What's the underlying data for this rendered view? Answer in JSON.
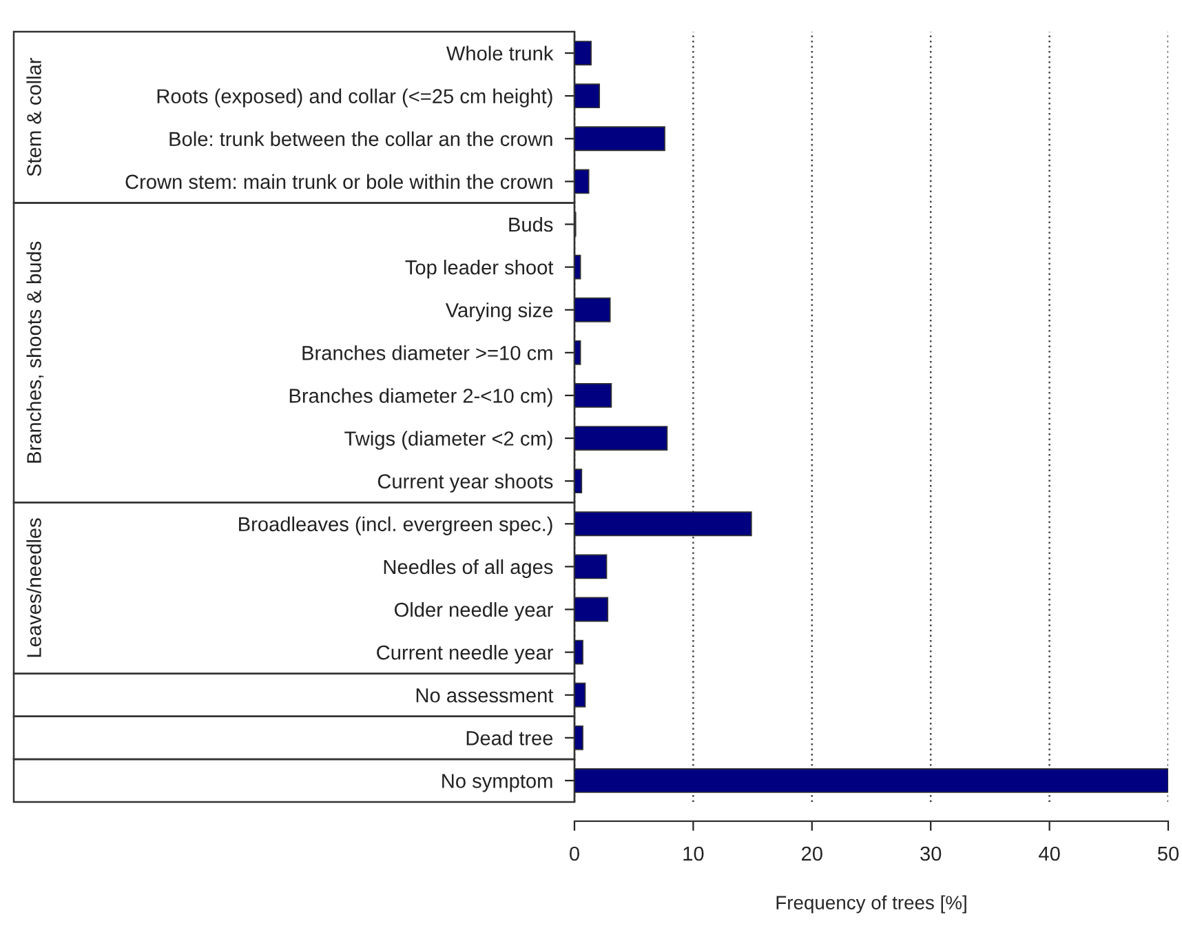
{
  "chart_data": {
    "type": "bar",
    "orientation": "horizontal",
    "xlabel": "Frequency of trees [%]",
    "categories": [
      "Whole trunk",
      "Roots (exposed) and collar (<=25 cm height)",
      "Bole: trunk between the collar an the crown",
      "Crown stem: main trunk or bole within the crown",
      "Buds",
      "Top leader shoot",
      "Varying size",
      "Branches diameter >=10 cm",
      "Branches diameter 2-<10 cm)",
      "Twigs (diameter <2 cm)",
      "Current year shoots",
      "Broadleaves (incl. evergreen spec.)",
      "Needles of all ages",
      "Older needle year",
      "Current needle year",
      "No assessment",
      "Dead tree",
      "No symptom"
    ],
    "values": [
      1.4,
      2.1,
      7.6,
      1.2,
      0.1,
      0.5,
      3.0,
      0.5,
      3.1,
      7.8,
      0.6,
      14.9,
      2.7,
      2.8,
      0.7,
      0.9,
      0.7,
      50
    ],
    "color": "#000080",
    "xlim": [
      0,
      50
    ],
    "xticks": [
      0,
      10,
      20,
      30,
      40,
      50
    ],
    "grid": "x",
    "annotations": [
      "Stem & collar",
      "Branches, shoots & buds",
      "Leaves/needles"
    ]
  }
}
